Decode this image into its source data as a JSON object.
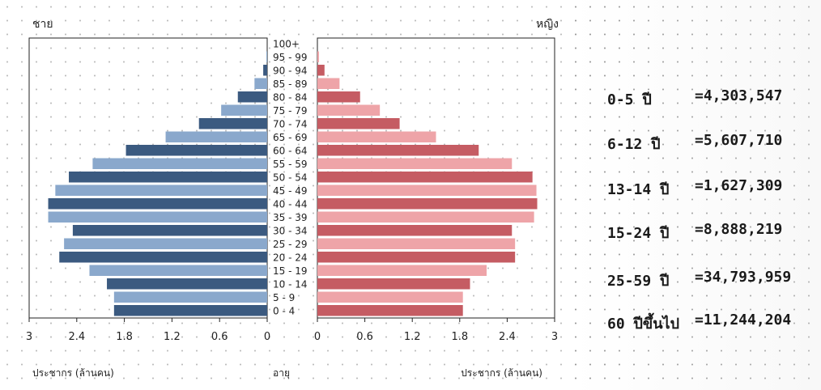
{
  "chart_data": {
    "type": "bar",
    "title": "",
    "left_label": "ชาย",
    "right_label": "หญิง",
    "center_label": "อายุ",
    "xlabel_left": "ประชากร (ล้านคน)",
    "xlabel_right": "ประชากร (ล้านคน)",
    "xlim": [
      0,
      3
    ],
    "ticks": [
      "3",
      "2.4",
      "1.8",
      "1.2",
      "0.6",
      "0",
      "0",
      "0.6",
      "1.2",
      "1.8",
      "2.4",
      "3"
    ],
    "categories": [
      "0 - 4",
      "5 - 9",
      "10 - 14",
      "15 - 19",
      "20 - 24",
      "25 - 29",
      "30 - 34",
      "35 - 39",
      "40 - 44",
      "45 - 49",
      "50 - 54",
      "55 - 59",
      "60 - 64",
      "65 - 69",
      "70 - 74",
      "75 - 79",
      "80 - 84",
      "85 - 89",
      "90 - 94",
      "95 - 99",
      "100+"
    ],
    "series": [
      {
        "name": "ชาย",
        "values": [
          1.93,
          1.93,
          2.02,
          2.24,
          2.62,
          2.56,
          2.45,
          2.76,
          2.76,
          2.67,
          2.5,
          2.2,
          1.78,
          1.28,
          0.86,
          0.58,
          0.37,
          0.16,
          0.05,
          0.01,
          0.0
        ]
      },
      {
        "name": "หญิง",
        "values": [
          1.84,
          1.84,
          1.93,
          2.14,
          2.5,
          2.5,
          2.46,
          2.74,
          2.78,
          2.77,
          2.72,
          2.46,
          2.04,
          1.5,
          1.04,
          0.79,
          0.54,
          0.28,
          0.09,
          0.02,
          0.0
        ]
      }
    ],
    "colors": {
      "male_dark": "#3b5a80",
      "male_light": "#8aa8cc",
      "female_dark": "#c55c63",
      "female_light": "#eea4a8"
    }
  },
  "stats": [
    {
      "label": "0-5 ปี",
      "value": "=4,303,547"
    },
    {
      "label": "6-12 ปี",
      "value": "=5,607,710"
    },
    {
      "label": "13-14 ปี",
      "value": "=1,627,309"
    },
    {
      "label": "15-24 ปี",
      "value": "=8,888,219"
    },
    {
      "label": "25-59 ปี",
      "value": "=34,793,959"
    },
    {
      "label": "60 ปีขึ้นไป",
      "value": "=11,244,204"
    }
  ]
}
